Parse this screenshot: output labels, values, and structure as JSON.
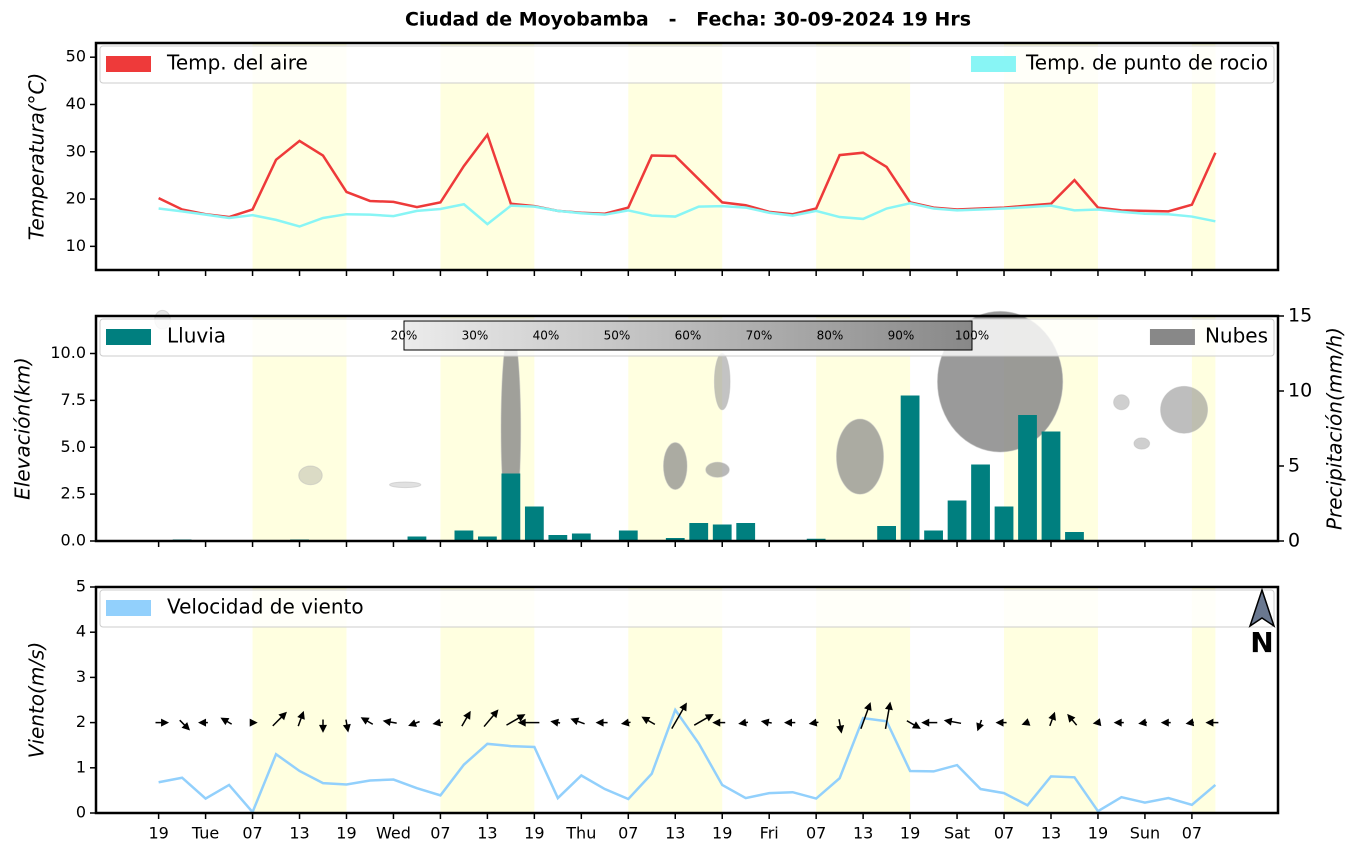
{
  "title": "Ciudad de Moyobamba   -   Fecha: 30-09-2024 19 Hrs",
  "north_label": "N",
  "x_axis": {
    "x": [
      0,
      3,
      6,
      9,
      12,
      15,
      18,
      21,
      24,
      27,
      30,
      33,
      36,
      39,
      42,
      45,
      48,
      51,
      54,
      57,
      60,
      63,
      66,
      69,
      72,
      75,
      78,
      81,
      84,
      87,
      90,
      93,
      96,
      99,
      102,
      105,
      108,
      111,
      114,
      117,
      120,
      123,
      126,
      129,
      132,
      135
    ],
    "xlim": [
      -8,
      143
    ],
    "xticks": [
      {
        "value": 0,
        "label": "19"
      },
      {
        "value": 6,
        "label": "Tue"
      },
      {
        "value": 12,
        "label": "07"
      },
      {
        "value": 18,
        "label": "13"
      },
      {
        "value": 24,
        "label": "19"
      },
      {
        "value": 30,
        "label": "Wed"
      },
      {
        "value": 36,
        "label": "07"
      },
      {
        "value": 42,
        "label": "13"
      },
      {
        "value": 48,
        "label": "19"
      },
      {
        "value": 54,
        "label": "Thu"
      },
      {
        "value": 60,
        "label": "07"
      },
      {
        "value": 66,
        "label": "13"
      },
      {
        "value": 72,
        "label": "19"
      },
      {
        "value": 78,
        "label": "Fri"
      },
      {
        "value": 84,
        "label": "07"
      },
      {
        "value": 90,
        "label": "13"
      },
      {
        "value": 96,
        "label": "19"
      },
      {
        "value": 102,
        "label": "Sat"
      },
      {
        "value": 108,
        "label": "07"
      },
      {
        "value": 114,
        "label": "13"
      },
      {
        "value": 120,
        "label": "19"
      },
      {
        "value": 126,
        "label": "Sun"
      },
      {
        "value": 132,
        "label": "07"
      }
    ],
    "shading": {
      "color": "#ffffe0",
      "ranges": [
        [
          12,
          24
        ],
        [
          36,
          48
        ],
        [
          60,
          72
        ],
        [
          84,
          96
        ],
        [
          108,
          120
        ],
        [
          132,
          135
        ]
      ]
    }
  },
  "chart_data": [
    {
      "type": "line",
      "ylabel": "Temperatura(°C)",
      "ylim": [
        5,
        53
      ],
      "yticks": [
        10,
        20,
        30,
        40,
        50
      ],
      "series": [
        {
          "name": "Temp. del aire",
          "color": "#ee3a3a",
          "legend": "upper left",
          "values": [
            20.2,
            17.8,
            16.8,
            16.2,
            17.8,
            28.3,
            32.3,
            29.2,
            21.5,
            19.6,
            19.4,
            18.3,
            19.3,
            27.0,
            33.6,
            19.0,
            18.5,
            17.5,
            17.1,
            16.9,
            18.2,
            29.2,
            29.1,
            24.2,
            19.3,
            18.7,
            17.3,
            16.8,
            18.0,
            29.3,
            29.8,
            26.8,
            19.3,
            18.2,
            17.8,
            18.0,
            18.2,
            18.6,
            19.0,
            24.0,
            18.2,
            17.6,
            17.5,
            17.4,
            18.8,
            29.8
          ]
        },
        {
          "name": "Temp. de punto de rocio",
          "color": "#88f5f5",
          "legend": "upper right",
          "values": [
            18.0,
            17.4,
            16.7,
            16.0,
            16.6,
            15.6,
            14.2,
            16.0,
            16.8,
            16.7,
            16.4,
            17.5,
            17.9,
            18.9,
            14.7,
            18.6,
            18.4,
            17.5,
            17.0,
            16.7,
            17.6,
            16.5,
            16.3,
            18.4,
            18.5,
            18.2,
            17.1,
            16.5,
            17.5,
            16.2,
            15.8,
            18.0,
            19.1,
            18.0,
            17.6,
            17.8,
            18.0,
            18.3,
            18.6,
            17.6,
            17.8,
            17.3,
            16.9,
            16.8,
            16.3,
            15.3
          ]
        }
      ]
    },
    {
      "type": "bar",
      "ylabel": "Elevación(km)",
      "y2label": "Precipitación(mm/h)",
      "ylim": [
        0,
        12
      ],
      "yticks": [
        {
          "value": 0,
          "label": "0.0"
        },
        2.5,
        {
          "value": 5,
          "label": "5.0"
        },
        7.5,
        {
          "value": 10,
          "label": "10.0"
        }
      ],
      "y2lim": [
        0,
        15
      ],
      "y2ticks": [
        0,
        5,
        10,
        15
      ],
      "series": [
        {
          "name": "Lluvia",
          "color": "#007f7f",
          "axis": "y2",
          "legend": "upper left",
          "values": [
            0,
            0.1,
            0,
            0,
            0,
            0,
            0.1,
            0.05,
            0,
            0,
            0,
            0.3,
            0,
            0.7,
            0.3,
            4.5,
            2.3,
            0.4,
            0.5,
            0,
            0.7,
            0,
            0.2,
            1.2,
            1.1,
            1.2,
            0,
            0,
            0.15,
            0.05,
            0,
            1.0,
            9.7,
            0.7,
            2.7,
            5.1,
            2.3,
            8.4,
            7.3,
            0.6,
            0,
            0.05,
            0,
            0,
            0,
            0
          ]
        }
      ],
      "clouds": {
        "name": "Nubes",
        "color": "#888888",
        "legend": "upper right",
        "colorbar": [
          "20%",
          "30%",
          "40%",
          "50%",
          "60%",
          "70%",
          "80%",
          "90%",
          "100%"
        ],
        "blobs": [
          {
            "x": 45,
            "elevation": 6,
            "width": 2.5,
            "height": 11,
            "cover": 80
          },
          {
            "x": 66,
            "elevation": 4,
            "width": 3,
            "height": 2.5,
            "cover": 70
          },
          {
            "x": 71.4,
            "elevation": 3.8,
            "width": 3,
            "height": 0.8,
            "cover": 60
          },
          {
            "x": 72,
            "elevation": 8.5,
            "width": 2,
            "height": 3,
            "cover": 50
          },
          {
            "x": 89.6,
            "elevation": 4.5,
            "width": 6,
            "height": 4,
            "cover": 70
          },
          {
            "x": 107.5,
            "elevation": 8.5,
            "width": 16,
            "height": 7.5,
            "cover": 85
          },
          {
            "x": 123,
            "elevation": 7.4,
            "width": 2,
            "height": 0.8,
            "cover": 40
          },
          {
            "x": 125.6,
            "elevation": 5.2,
            "width": 2,
            "height": 0.6,
            "cover": 40
          },
          {
            "x": 131,
            "elevation": 7,
            "width": 6,
            "height": 2.5,
            "cover": 55
          },
          {
            "x": 19.4,
            "elevation": 3.5,
            "width": 3,
            "height": 1,
            "cover": 30
          },
          {
            "x": 31.5,
            "elevation": 3,
            "width": 4,
            "height": 0.3,
            "cover": 25
          },
          {
            "x": 0.5,
            "elevation": 11.8,
            "width": 2,
            "height": 1,
            "cover": 20
          }
        ]
      }
    },
    {
      "type": "line",
      "ylabel": "Viento(m/s)",
      "ylim": [
        0,
        5
      ],
      "yticks": [
        0,
        1,
        2,
        3,
        4,
        5
      ],
      "series": [
        {
          "name": "Velocidad de viento",
          "color": "#92d0fc",
          "legend": "upper left",
          "values": [
            0.68,
            0.78,
            0.32,
            0.62,
            0.02,
            1.3,
            0.93,
            0.66,
            0.63,
            0.72,
            0.74,
            0.55,
            0.39,
            1.07,
            1.53,
            1.48,
            1.46,
            0.33,
            0.83,
            0.53,
            0.31,
            0.87,
            2.28,
            1.54,
            0.62,
            0.33,
            0.44,
            0.46,
            0.32,
            0.77,
            2.1,
            2.03,
            0.93,
            0.92,
            1.06,
            0.53,
            0.44,
            0.17,
            0.81,
            0.79,
            0.04,
            0.35,
            0.23,
            0.33,
            0.18,
            0.62
          ]
        }
      ],
      "arrow_y": 2,
      "wind_direction": [
        90,
        135,
        270,
        300,
        90,
        45,
        20,
        180,
        170,
        300,
        280,
        250,
        260,
        30,
        40,
        60,
        270,
        280,
        290,
        270,
        260,
        300,
        30,
        60,
        270,
        260,
        280,
        270,
        260,
        170,
        20,
        10,
        120,
        270,
        280,
        200,
        270,
        250,
        20,
        320,
        260,
        270,
        260,
        270,
        260,
        270
      ]
    }
  ]
}
